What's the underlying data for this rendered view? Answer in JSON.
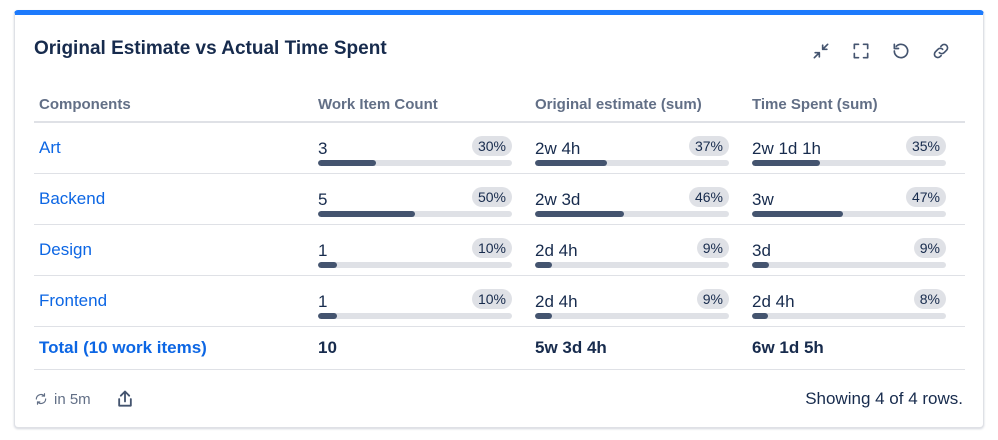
{
  "title": "Original Estimate vs Actual Time Spent",
  "actions": [
    {
      "name": "collapse-icon"
    },
    {
      "name": "fullscreen-icon"
    },
    {
      "name": "refresh-icon"
    },
    {
      "name": "link-icon"
    }
  ],
  "columns": [
    "Components",
    "Work Item Count",
    "Original estimate (sum)",
    "Time Spent (sum)"
  ],
  "rows": [
    {
      "component": "Art",
      "cells": [
        {
          "value": "3",
          "percent": "30%",
          "fill": 30
        },
        {
          "value": "2w 4h",
          "percent": "37%",
          "fill": 37
        },
        {
          "value": "2w 1d 1h",
          "percent": "35%",
          "fill": 35
        }
      ]
    },
    {
      "component": "Backend",
      "cells": [
        {
          "value": "5",
          "percent": "50%",
          "fill": 50
        },
        {
          "value": "2w 3d",
          "percent": "46%",
          "fill": 46
        },
        {
          "value": "3w",
          "percent": "47%",
          "fill": 47
        }
      ]
    },
    {
      "component": "Design",
      "cells": [
        {
          "value": "1",
          "percent": "10%",
          "fill": 10
        },
        {
          "value": "2d 4h",
          "percent": "9%",
          "fill": 9
        },
        {
          "value": "3d",
          "percent": "9%",
          "fill": 9
        }
      ]
    },
    {
      "component": "Frontend",
      "cells": [
        {
          "value": "1",
          "percent": "10%",
          "fill": 10
        },
        {
          "value": "2d 4h",
          "percent": "9%",
          "fill": 9
        },
        {
          "value": "2d 4h",
          "percent": "8%",
          "fill": 8
        }
      ]
    }
  ],
  "total": {
    "label": "Total (10 work items)",
    "values": [
      "10",
      "5w 3d 4h",
      "6w 1d 5h"
    ]
  },
  "footer": {
    "refresh_text": "in 5m",
    "showing": "Showing 4 of 4 rows."
  },
  "colors": {
    "accent": "#1d7afc",
    "link": "#0c66e4",
    "bar": "#44546f",
    "track": "#dfe1e6"
  }
}
